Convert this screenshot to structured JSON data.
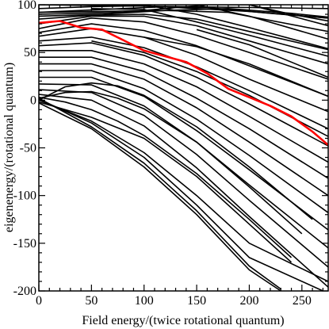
{
  "chart_data": {
    "type": "line",
    "title": "",
    "xlabel": "Field energy/(twice rotational quantum)",
    "ylabel": "eigenenergy/(rotational quantum)",
    "xlim": [
      0,
      275
    ],
    "ylim": [
      -200,
      100
    ],
    "x_ticks": [
      0,
      50,
      100,
      150,
      200,
      250
    ],
    "y_ticks": [
      -200,
      -150,
      -100,
      -50,
      0,
      50,
      100
    ],
    "grid": false,
    "legend": "none",
    "colors": {
      "levels": "#000000",
      "highlight": "#ff0000"
    },
    "highlight": {
      "x": [
        0,
        20,
        40,
        60,
        80,
        100,
        120,
        140,
        160,
        180,
        200,
        220,
        240,
        260,
        275
      ],
      "y": [
        81,
        83,
        76,
        74,
        63,
        52,
        46,
        40,
        28,
        12,
        3,
        -6,
        -17,
        -33,
        -47
      ]
    },
    "series": [
      {
        "x": [
          0,
          275
        ],
        "y": [
          100,
          96
        ]
      },
      {
        "x": [
          0,
          50,
          100,
          150,
          200,
          275
        ],
        "y": [
          96,
          98,
          99,
          96,
          93,
          86
        ]
      },
      {
        "x": [
          0,
          40,
          80,
          120,
          160,
          220,
          275
        ],
        "y": [
          92,
          94,
          96,
          98,
          97,
          91,
          86
        ]
      },
      {
        "x": [
          0,
          60,
          120,
          180,
          240,
          275
        ],
        "y": [
          88,
          90,
          94,
          96,
          91,
          87
        ]
      },
      {
        "x": [
          0,
          40,
          80,
          120,
          160,
          200,
          240,
          275
        ],
        "y": [
          90,
          91,
          92,
          96,
          100,
          100,
          90,
          83
        ]
      },
      {
        "x": [
          0,
          60,
          120,
          180,
          275
        ],
        "y": [
          92,
          93,
          94,
          92,
          72
        ]
      },
      {
        "x": [
          0,
          50,
          100,
          150,
          200,
          275
        ],
        "y": [
          85,
          89,
          90,
          85,
          72,
          53
        ]
      },
      {
        "x": [
          0,
          50,
          100,
          150,
          200,
          275
        ],
        "y": [
          80,
          88,
          88,
          78,
          62,
          38
        ]
      },
      {
        "x": [
          0,
          50,
          100,
          150,
          200,
          275
        ],
        "y": [
          75,
          86,
          82,
          68,
          50,
          22
        ]
      },
      {
        "x": [
          0,
          50,
          100,
          150,
          200,
          275
        ],
        "y": [
          71,
          80,
          73,
          57,
          36,
          4
        ]
      },
      {
        "x": [
          0,
          50,
          100,
          150,
          200,
          275
        ],
        "y": [
          67,
          75,
          66,
          47,
          22,
          -12
        ]
      },
      {
        "x": [
          0,
          50,
          100,
          150,
          200,
          275
        ],
        "y": [
          62,
          66,
          55,
          35,
          10,
          -30
        ]
      },
      {
        "x": [
          0,
          50,
          100,
          150,
          200,
          275
        ],
        "y": [
          57,
          60,
          47,
          24,
          -4,
          -48
        ]
      },
      {
        "x": [
          0,
          50,
          100,
          150,
          200,
          275
        ],
        "y": [
          52,
          52,
          38,
          14,
          -17,
          -65
        ]
      },
      {
        "x": [
          0,
          50,
          100,
          150,
          200,
          275
        ],
        "y": [
          45,
          45,
          30,
          2,
          -30,
          -82
        ]
      },
      {
        "x": [
          0,
          50,
          100,
          150,
          200,
          275
        ],
        "y": [
          38,
          38,
          22,
          -8,
          -44,
          -100
        ]
      },
      {
        "x": [
          0,
          50,
          100,
          150,
          200,
          275
        ],
        "y": [
          31,
          31,
          12,
          -20,
          -58,
          -118
        ]
      },
      {
        "x": [
          0,
          50,
          100,
          150,
          200,
          275
        ],
        "y": [
          24,
          24,
          4,
          -32,
          -73,
          -136
        ]
      },
      {
        "x": [
          0,
          50,
          100,
          150,
          200,
          275
        ],
        "y": [
          17,
          16,
          -6,
          -44,
          -89,
          -155
        ]
      },
      {
        "x": [
          0,
          50,
          100,
          150,
          200,
          275
        ],
        "y": [
          11,
          8,
          -16,
          -57,
          -105,
          -175
        ]
      },
      {
        "x": [
          0,
          50,
          100,
          150,
          200,
          275
        ],
        "y": [
          6,
          0,
          -27,
          -71,
          -122,
          -196
        ]
      },
      {
        "x": [
          0,
          25,
          50,
          75,
          100,
          150,
          200,
          260
        ],
        "y": [
          0,
          14,
          18,
          15,
          5,
          -28,
          -70,
          -125
        ]
      },
      {
        "x": [
          0,
          25,
          50,
          75,
          100,
          150,
          200,
          250
        ],
        "y": [
          2,
          8,
          9,
          2,
          -9,
          -44,
          -91,
          -140
        ]
      },
      {
        "x": [
          0,
          25,
          50,
          75,
          100,
          150,
          200,
          240
        ],
        "y": [
          3,
          -2,
          -10,
          -22,
          -37,
          -77,
          -125,
          -165
        ]
      },
      {
        "x": [
          0,
          50,
          100,
          150,
          200,
          240
        ],
        "y": [
          -2,
          -18,
          -40,
          -80,
          -130,
          -170
        ]
      },
      {
        "x": [
          0,
          50,
          100,
          150,
          200,
          230
        ],
        "y": [
          -3,
          -30,
          -70,
          -120,
          -178,
          -200
        ]
      },
      {
        "x": [
          0,
          50,
          100,
          150,
          200,
          230
        ],
        "y": [
          2,
          -28,
          -66,
          -116,
          -174,
          -198
        ]
      },
      {
        "x": [
          0,
          50,
          100,
          150,
          200,
          270
        ],
        "y": [
          1,
          -24,
          -60,
          -110,
          -165,
          -200
        ]
      },
      {
        "x": [
          0,
          50,
          100,
          150,
          200,
          275
        ],
        "y": [
          0,
          -22,
          -55,
          -100,
          -150,
          -190
        ]
      },
      {
        "x": [
          50,
          100,
          150,
          200,
          275
        ],
        "y": [
          96,
          95,
          82,
          68,
          46
        ]
      },
      {
        "x": [
          100,
          150,
          200,
          275
        ],
        "y": [
          100,
          90,
          76,
          54
        ]
      },
      {
        "x": [
          150,
          200,
          275
        ],
        "y": [
          100,
          88,
          64
        ]
      },
      {
        "x": [
          200,
          275
        ],
        "y": [
          100,
          78
        ]
      },
      {
        "x": [
          50,
          100,
          150,
          200,
          275
        ],
        "y": [
          62,
          50,
          30,
          5,
          -38
        ]
      },
      {
        "x": [
          100,
          150,
          200,
          275
        ],
        "y": [
          66,
          56,
          38,
          4
        ]
      },
      {
        "x": [
          150,
          200,
          275
        ],
        "y": [
          74,
          58,
          24
        ]
      }
    ]
  }
}
